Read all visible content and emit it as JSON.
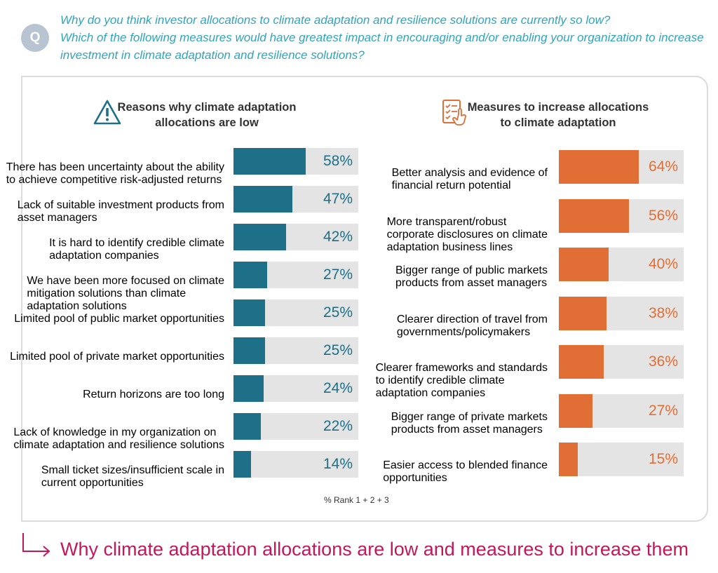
{
  "question": {
    "badge": "Q",
    "lines": [
      "Why do you think investor allocations to climate adaptation and resilience solutions are currently so low?",
      "Which of the following measures would have greatest impact in encouraging and/or enabling your organization to increase",
      "investment in climate adaptation and resilience solutions?"
    ]
  },
  "colors": {
    "left_bar": "#1d7088",
    "right_bar": "#e06e35",
    "track": "#e4e4e4",
    "question": "#2ea4bd",
    "caption": "#c2185b"
  },
  "icons": {
    "left": "warning-triangle-icon",
    "right": "checklist-hand-icon",
    "caption": "arrow-right-icon"
  },
  "chart_data": [
    {
      "type": "bar",
      "orientation": "horizontal",
      "title_lines": [
        "Reasons why climate adaptation",
        "allocations are low"
      ],
      "categories": [
        [
          "There has been uncertainty about the ability",
          "to achieve competitive risk-adjusted returns"
        ],
        [
          "Lack of suitable investment products from",
          "asset managers"
        ],
        [
          "It is hard to identify credible climate",
          "adaptation companies"
        ],
        [
          "We have been more focused on climate",
          "mitigation solutions than climate",
          "adaptation solutions"
        ],
        [
          "Limited pool of public market opportunities"
        ],
        [
          "Limited pool of private market opportunities"
        ],
        [
          "Return horizons are too long"
        ],
        [
          "Lack of knowledge in my organization on",
          "climate adaptation and resilience solutions"
        ],
        [
          "Small ticket sizes/insufficient scale in",
          "current opportunities"
        ]
      ],
      "values": [
        58,
        47,
        42,
        27,
        25,
        25,
        24,
        22,
        14
      ],
      "labels": [
        "58%",
        "47%",
        "42%",
        "27%",
        "25%",
        "25%",
        "24%",
        "22%",
        "14%"
      ],
      "xlim": [
        0,
        100
      ]
    },
    {
      "type": "bar",
      "orientation": "horizontal",
      "title_lines": [
        "Measures to increase allocations",
        "to climate adaptation"
      ],
      "categories": [
        [
          "Better analysis and evidence of",
          "financial return potential"
        ],
        [
          "More transparent/robust",
          "corporate disclosures on climate",
          "adaptation business lines"
        ],
        [
          "Bigger range of public markets",
          "products from asset managers"
        ],
        [
          "Clearer direction of travel from",
          "governments/policymakers"
        ],
        [
          "Clearer frameworks and standards",
          "to identify credible climate",
          "adaptation companies"
        ],
        [
          "Bigger range of private markets",
          "products from asset managers"
        ],
        [
          "Easier access to blended finance",
          "opportunities"
        ]
      ],
      "values": [
        64,
        56,
        40,
        38,
        36,
        27,
        15
      ],
      "labels": [
        "64%",
        "56%",
        "40%",
        "38%",
        "36%",
        "27%",
        "15%"
      ],
      "xlim": [
        0,
        100
      ]
    }
  ],
  "footnote": "% Rank 1 + 2 + 3",
  "caption": "Why climate adaptation allocations are low and measures to increase them"
}
